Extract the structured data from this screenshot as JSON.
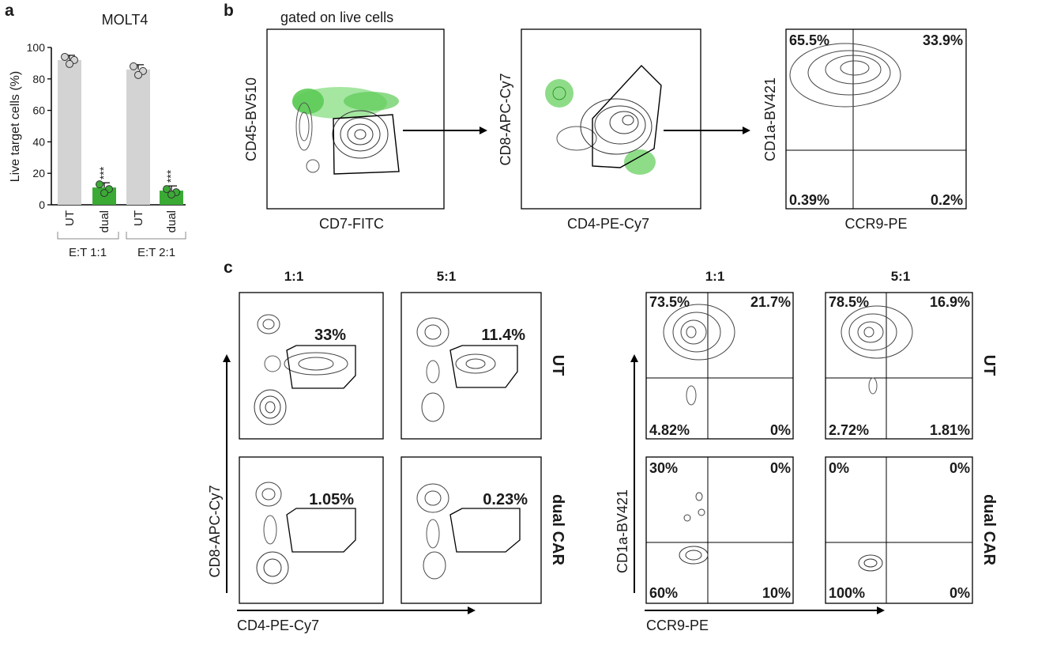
{
  "panel_letters": {
    "a": "a",
    "b": "b",
    "c": "c"
  },
  "panel_a": {
    "title": "MOLT4",
    "ylabel": "Live target cells (%)",
    "ticks": [
      "0",
      "20",
      "40",
      "60",
      "80",
      "100"
    ],
    "groups": [
      {
        "label": "E:T 1:1",
        "bars": [
          "UT",
          "dual"
        ]
      },
      {
        "label": "E:T 2:1",
        "bars": [
          "UT",
          "dual"
        ]
      }
    ],
    "significance": "***",
    "colors": {
      "ut": "#d3d3d3",
      "dual": "#3aaa35"
    }
  },
  "chart_data": {
    "type": "bar",
    "title": "MOLT4",
    "ylabel": "Live target cells (%)",
    "ylim": [
      0,
      100
    ],
    "categories": [
      "E:T 1:1 UT",
      "E:T 1:1 dual",
      "E:T 2:1 UT",
      "E:T 2:1 dual"
    ],
    "values": [
      92,
      11,
      86,
      9
    ],
    "points": [
      [
        94,
        92,
        91
      ],
      [
        13,
        10,
        9
      ],
      [
        88,
        85,
        84
      ],
      [
        10,
        8,
        8
      ]
    ],
    "significance": [
      "",
      "***",
      "",
      "***"
    ]
  },
  "panel_b": {
    "header": "gated on live cells",
    "plot1": {
      "xlabel": "CD7-FITC",
      "ylabel": "CD45-BV510"
    },
    "plot2": {
      "xlabel": "CD4-PE-Cy7",
      "ylabel": "CD8-APC-Cy7"
    },
    "plot3": {
      "xlabel": "CCR9-PE",
      "ylabel": "CD1a-BV421",
      "q": {
        "tl": "65.5%",
        "tr": "33.9%",
        "bl": "0.39%",
        "br": "0.2%"
      }
    }
  },
  "panel_c": {
    "ratio_1": "1:1",
    "ratio_2": "5:1",
    "row_ut": "UT",
    "row_car": "dual CAR",
    "left_xlabel": "CD4-PE-Cy7",
    "left_ylabel": "CD8-APC-Cy7",
    "right_xlabel": "CCR9-PE",
    "right_ylabel": "CD1a-BV421",
    "gate_ut_11": "33%",
    "gate_ut_51": "11.4%",
    "gate_car_11": "1.05%",
    "gate_car_51": "0.23%",
    "q_ut_11": {
      "tl": "73.5%",
      "tr": "21.7%",
      "bl": "4.82%",
      "br": "0%"
    },
    "q_ut_51": {
      "tl": "78.5%",
      "tr": "16.9%",
      "bl": "2.72%",
      "br": "1.81%"
    },
    "q_car_11": {
      "tl": "30%",
      "tr": "0%",
      "bl": "60%",
      "br": "10%"
    },
    "q_car_51": {
      "tl": "0%",
      "tr": "0%",
      "bl": "100%",
      "br": "0%"
    }
  }
}
